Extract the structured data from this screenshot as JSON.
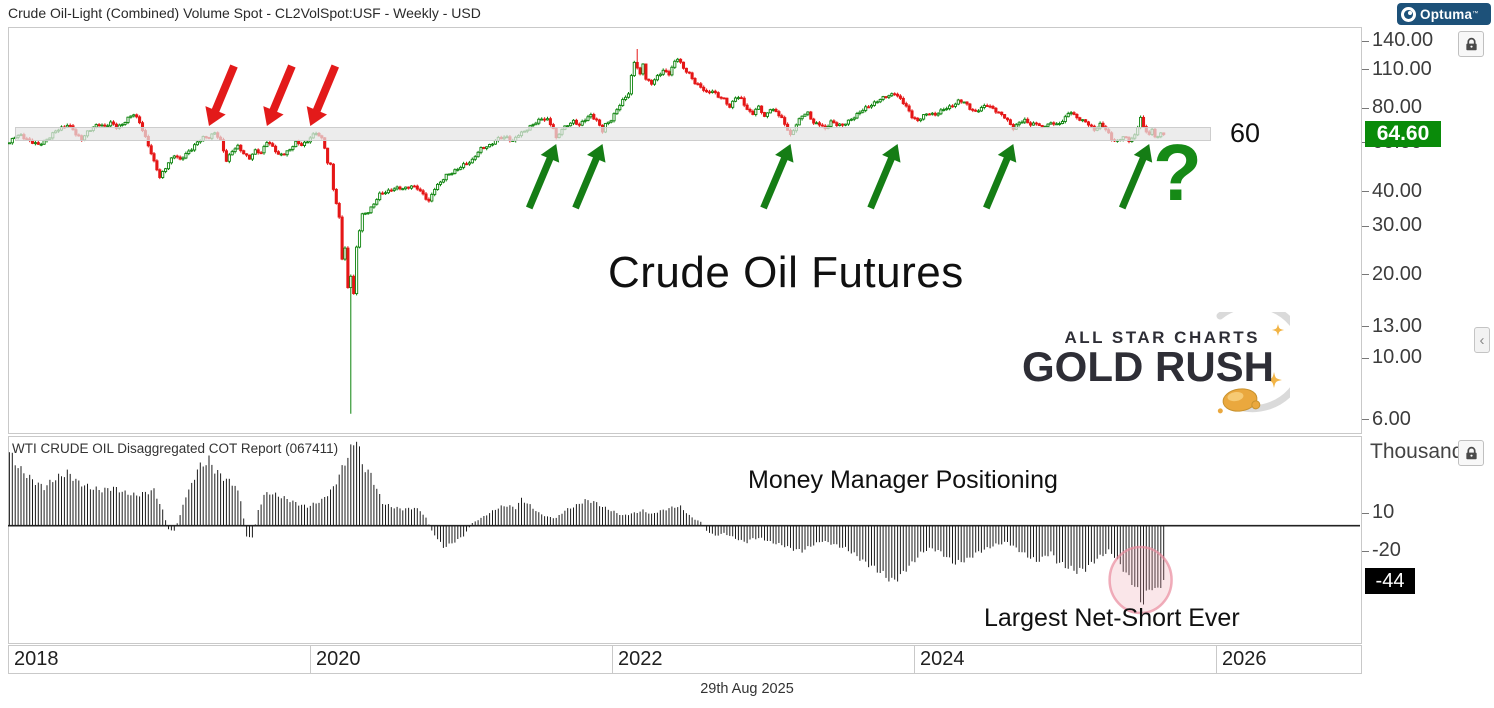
{
  "window": {
    "title": "Crude Oil-Light (Combined) Volume Spot - CL2VolSpot:USF - Weekly - USD",
    "brand": "Optuma",
    "footer_date": "29th Aug 2025"
  },
  "annotations": {
    "main_label": "Crude Oil Futures",
    "resistance_label": "60",
    "question_mark": "?",
    "mm_positioning": "Money Manager Positioning",
    "net_short": "Largest Net-Short Ever"
  },
  "logo_asc": {
    "line1": "ALL STAR CHARTS",
    "line2": "GOLD RUSH"
  },
  "colors": {
    "up": "#0c830c",
    "down": "#e51717",
    "arrow_red": "#e31a1a",
    "arrow_green": "#157d15",
    "last_price_bg": "#0a8b0a",
    "last_value_bg": "#000000",
    "brand_bg": "#1d5179",
    "band": "#e5e5e5",
    "hist": "#1b1b1b",
    "circle": "#e87f96"
  },
  "chart_data": [
    {
      "type": "candlestick",
      "title": "Crude Oil-Light (Combined) Volume Spot",
      "symbol": "CL2VolSpot:USF",
      "timeframe": "Weekly",
      "currency": "USD",
      "y_scale": "log",
      "y_ticks": [
        140,
        110,
        80,
        60,
        40,
        30,
        20,
        13,
        10,
        6
      ],
      "x_years": [
        2018,
        2020,
        2022,
        2024,
        2026
      ],
      "last_close": 64.6,
      "resistance_zone": 60,
      "weeks": 400,
      "anchors_week_close": [
        [
          0,
          60
        ],
        [
          2,
          63
        ],
        [
          4,
          64
        ],
        [
          6,
          62
        ],
        [
          8,
          60
        ],
        [
          10,
          59
        ],
        [
          12,
          61
        ],
        [
          14,
          63
        ],
        [
          16,
          66
        ],
        [
          18,
          68
        ],
        [
          20,
          70
        ],
        [
          22,
          67
        ],
        [
          23,
          64
        ],
        [
          25,
          62
        ],
        [
          27,
          66
        ],
        [
          29,
          68
        ],
        [
          31,
          70
        ],
        [
          33,
          69
        ],
        [
          35,
          71
        ],
        [
          37,
          68
        ],
        [
          39,
          70
        ],
        [
          41,
          74
        ],
        [
          43,
          76
        ],
        [
          45,
          71
        ],
        [
          46,
          67
        ],
        [
          48,
          59
        ],
        [
          50,
          51
        ],
        [
          52,
          45
        ],
        [
          53,
          47
        ],
        [
          55,
          51
        ],
        [
          57,
          54
        ],
        [
          59,
          52
        ],
        [
          61,
          55
        ],
        [
          63,
          57
        ],
        [
          65,
          60
        ],
        [
          67,
          63
        ],
        [
          69,
          63
        ],
        [
          71,
          65
        ],
        [
          73,
          61
        ],
        [
          75,
          52
        ],
        [
          77,
          56
        ],
        [
          79,
          58
        ],
        [
          81,
          55
        ],
        [
          83,
          53
        ],
        [
          85,
          56
        ],
        [
          87,
          55
        ],
        [
          89,
          61
        ],
        [
          91,
          58
        ],
        [
          93,
          54
        ],
        [
          95,
          55
        ],
        [
          97,
          57
        ],
        [
          99,
          60
        ],
        [
          101,
          59
        ],
        [
          103,
          61
        ],
        [
          104,
          63
        ],
        [
          106,
          65
        ],
        [
          108,
          62
        ],
        [
          109,
          58
        ],
        [
          110,
          51
        ],
        [
          111,
          50
        ],
        [
          112,
          41
        ],
        [
          113,
          36
        ],
        [
          114,
          32
        ],
        [
          115,
          23
        ],
        [
          116,
          25
        ],
        [
          117,
          18
        ],
        [
          118,
          20
        ],
        [
          119,
          17
        ],
        [
          120,
          25
        ],
        [
          121,
          29
        ],
        [
          122,
          33
        ],
        [
          124,
          34
        ],
        [
          126,
          36
        ],
        [
          128,
          39
        ],
        [
          130,
          40
        ],
        [
          133,
          41
        ],
        [
          136,
          41
        ],
        [
          139,
          42
        ],
        [
          141,
          41
        ],
        [
          143,
          39
        ],
        [
          145,
          37
        ],
        [
          147,
          41
        ],
        [
          149,
          43
        ],
        [
          151,
          46
        ],
        [
          153,
          47
        ],
        [
          155,
          48
        ],
        [
          157,
          50
        ],
        [
          160,
          52
        ],
        [
          163,
          57
        ],
        [
          166,
          59
        ],
        [
          169,
          62
        ],
        [
          172,
          63
        ],
        [
          174,
          61
        ],
        [
          176,
          64
        ],
        [
          178,
          66
        ],
        [
          180,
          69
        ],
        [
          182,
          71
        ],
        [
          184,
          73
        ],
        [
          186,
          73
        ],
        [
          188,
          68
        ],
        [
          189,
          62
        ],
        [
          191,
          67
        ],
        [
          193,
          70
        ],
        [
          195,
          72
        ],
        [
          197,
          69
        ],
        [
          199,
          73
        ],
        [
          201,
          76
        ],
        [
          203,
          72
        ],
        [
          205,
          66
        ],
        [
          206,
          70
        ],
        [
          208,
          73
        ],
        [
          210,
          79
        ],
        [
          212,
          85
        ],
        [
          214,
          91
        ],
        [
          216,
          118
        ],
        [
          217,
          112
        ],
        [
          218,
          105
        ],
        [
          219,
          116
        ],
        [
          220,
          102
        ],
        [
          222,
          99
        ],
        [
          224,
          104
        ],
        [
          226,
          109
        ],
        [
          228,
          107
        ],
        [
          230,
          118
        ],
        [
          231,
          121
        ],
        [
          233,
          111
        ],
        [
          235,
          107
        ],
        [
          237,
          99
        ],
        [
          239,
          95
        ],
        [
          241,
          91
        ],
        [
          243,
          93
        ],
        [
          245,
          88
        ],
        [
          247,
          86
        ],
        [
          249,
          81
        ],
        [
          251,
          88
        ],
        [
          253,
          86
        ],
        [
          255,
          79
        ],
        [
          257,
          77
        ],
        [
          259,
          81
        ],
        [
          261,
          74
        ],
        [
          263,
          80
        ],
        [
          265,
          78
        ],
        [
          267,
          73
        ],
        [
          269,
          67
        ],
        [
          270,
          64
        ],
        [
          272,
          70
        ],
        [
          274,
          75
        ],
        [
          276,
          77
        ],
        [
          278,
          71
        ],
        [
          280,
          70
        ],
        [
          282,
          67
        ],
        [
          284,
          72
        ],
        [
          286,
          70
        ],
        [
          288,
          69
        ],
        [
          290,
          72
        ],
        [
          293,
          76
        ],
        [
          296,
          80
        ],
        [
          299,
          84
        ],
        [
          302,
          87
        ],
        [
          305,
          90
        ],
        [
          306,
          91
        ],
        [
          308,
          86
        ],
        [
          310,
          81
        ],
        [
          312,
          75
        ],
        [
          314,
          72
        ],
        [
          316,
          75
        ],
        [
          318,
          77
        ],
        [
          320,
          76
        ],
        [
          322,
          78
        ],
        [
          324,
          80
        ],
        [
          326,
          82
        ],
        [
          328,
          85
        ],
        [
          330,
          84
        ],
        [
          332,
          80
        ],
        [
          334,
          78
        ],
        [
          336,
          80
        ],
        [
          338,
          82
        ],
        [
          340,
          80
        ],
        [
          342,
          77
        ],
        [
          344,
          74
        ],
        [
          346,
          70
        ],
        [
          347,
          68
        ],
        [
          349,
          71
        ],
        [
          351,
          72
        ],
        [
          353,
          70
        ],
        [
          355,
          71
        ],
        [
          357,
          68
        ],
        [
          359,
          70
        ],
        [
          361,
          71
        ],
        [
          363,
          70
        ],
        [
          365,
          74
        ],
        [
          367,
          78
        ],
        [
          369,
          74
        ],
        [
          371,
          72
        ],
        [
          373,
          70
        ],
        [
          375,
          67
        ],
        [
          377,
          70
        ],
        [
          379,
          67
        ],
        [
          381,
          62
        ],
        [
          383,
          61
        ],
        [
          385,
          63
        ],
        [
          387,
          61
        ],
        [
          389,
          64
        ],
        [
          391,
          74
        ],
        [
          392,
          68
        ],
        [
          393,
          66
        ],
        [
          394,
          64
        ],
        [
          395,
          67
        ],
        [
          396,
          64
        ],
        [
          397,
          63
        ],
        [
          398,
          65
        ],
        [
          399,
          64.6
        ]
      ],
      "crash_wick": {
        "week": 118,
        "low": 6.3
      },
      "spike_high": {
        "week": 217,
        "high": 131
      },
      "red_arrow_weeks": [
        69,
        89,
        104
      ],
      "green_arrow_weeks": [
        189,
        205,
        270,
        307,
        347,
        394
      ]
    },
    {
      "type": "bar",
      "name": "WTI CRUDE OIL Disaggregated COT Report (067411)",
      "units": "Thousands",
      "y_ticks": [
        10,
        -20
      ],
      "last_value": -44,
      "highlight_circle_week": 391,
      "anchors_week_value": [
        [
          0,
          58
        ],
        [
          2,
          50
        ],
        [
          4,
          44
        ],
        [
          8,
          36
        ],
        [
          12,
          30
        ],
        [
          15,
          36
        ],
        [
          20,
          42
        ],
        [
          24,
          34
        ],
        [
          28,
          30
        ],
        [
          32,
          28
        ],
        [
          36,
          30
        ],
        [
          40,
          26
        ],
        [
          44,
          24
        ],
        [
          47,
          26
        ],
        [
          50,
          28
        ],
        [
          53,
          12
        ],
        [
          55,
          -3
        ],
        [
          57,
          -4
        ],
        [
          59,
          8
        ],
        [
          61,
          24
        ],
        [
          63,
          32
        ],
        [
          65,
          45
        ],
        [
          68,
          50
        ],
        [
          69,
          52
        ],
        [
          71,
          44
        ],
        [
          74,
          38
        ],
        [
          78,
          32
        ],
        [
          80,
          20
        ],
        [
          82,
          -8
        ],
        [
          84,
          -10
        ],
        [
          86,
          12
        ],
        [
          88,
          24
        ],
        [
          90,
          26
        ],
        [
          95,
          22
        ],
        [
          100,
          17
        ],
        [
          103,
          15
        ],
        [
          106,
          18
        ],
        [
          108,
          20
        ],
        [
          112,
          30
        ],
        [
          115,
          45
        ],
        [
          118,
          60
        ],
        [
          120,
          70
        ],
        [
          122,
          48
        ],
        [
          125,
          40
        ],
        [
          129,
          18
        ],
        [
          132,
          15
        ],
        [
          136,
          13
        ],
        [
          140,
          14
        ],
        [
          142,
          12
        ],
        [
          144,
          6
        ],
        [
          146,
          -4
        ],
        [
          150,
          -17
        ],
        [
          153,
          -14
        ],
        [
          157,
          -8
        ],
        [
          160,
          2
        ],
        [
          163,
          6
        ],
        [
          166,
          10
        ],
        [
          168,
          13
        ],
        [
          170,
          15
        ],
        [
          172,
          16
        ],
        [
          175,
          14
        ],
        [
          177,
          21
        ],
        [
          180,
          16
        ],
        [
          183,
          10
        ],
        [
          186,
          7
        ],
        [
          189,
          6
        ],
        [
          192,
          12
        ],
        [
          196,
          16
        ],
        [
          199,
          20
        ],
        [
          202,
          19
        ],
        [
          205,
          15
        ],
        [
          208,
          12
        ],
        [
          212,
          8
        ],
        [
          216,
          10
        ],
        [
          219,
          12
        ],
        [
          222,
          9
        ],
        [
          224,
          11
        ],
        [
          227,
          13
        ],
        [
          230,
          15
        ],
        [
          232,
          15
        ],
        [
          235,
          8
        ],
        [
          237,
          5
        ],
        [
          239,
          3
        ],
        [
          241,
          -4
        ],
        [
          244,
          -8
        ],
        [
          247,
          -6
        ],
        [
          250,
          -9
        ],
        [
          253,
          -12
        ],
        [
          255,
          -13
        ],
        [
          257,
          -10
        ],
        [
          260,
          -10
        ],
        [
          263,
          -13
        ],
        [
          265,
          -14
        ],
        [
          268,
          -16
        ],
        [
          270,
          -18
        ],
        [
          274,
          -20
        ],
        [
          277,
          -16
        ],
        [
          281,
          -12
        ],
        [
          284,
          -14
        ],
        [
          289,
          -18
        ],
        [
          293,
          -24
        ],
        [
          295,
          -28
        ],
        [
          298,
          -32
        ],
        [
          300,
          -35
        ],
        [
          303,
          -40
        ],
        [
          305,
          -44
        ],
        [
          308,
          -40
        ],
        [
          310,
          -34
        ],
        [
          312,
          -30
        ],
        [
          315,
          -22
        ],
        [
          317,
          -19
        ],
        [
          319,
          -18
        ],
        [
          322,
          -21
        ],
        [
          324,
          -25
        ],
        [
          327,
          -30
        ],
        [
          329,
          -28
        ],
        [
          331,
          -27
        ],
        [
          334,
          -22
        ],
        [
          336,
          -20
        ],
        [
          338,
          -18
        ],
        [
          341,
          -15
        ],
        [
          343,
          -14
        ],
        [
          345,
          -13
        ],
        [
          348,
          -18
        ],
        [
          350,
          -21
        ],
        [
          352,
          -24
        ],
        [
          355,
          -28
        ],
        [
          357,
          -26
        ],
        [
          358,
          -24
        ],
        [
          360,
          -21
        ],
        [
          362,
          -28
        ],
        [
          365,
          -32
        ],
        [
          367,
          -34
        ],
        [
          369,
          -36
        ],
        [
          372,
          -34
        ],
        [
          374,
          -30
        ],
        [
          376,
          -26
        ],
        [
          378,
          -23
        ],
        [
          380,
          -20
        ],
        [
          382,
          -24
        ],
        [
          383,
          -28
        ],
        [
          385,
          -34
        ],
        [
          386,
          -38
        ],
        [
          388,
          -44
        ],
        [
          390,
          -52
        ],
        [
          391,
          -58
        ],
        [
          392,
          -60
        ],
        [
          393,
          -55
        ],
        [
          394,
          -50
        ],
        [
          395,
          -48
        ],
        [
          396,
          -52
        ],
        [
          397,
          -50
        ],
        [
          398,
          -46
        ],
        [
          399,
          -44
        ]
      ]
    }
  ]
}
